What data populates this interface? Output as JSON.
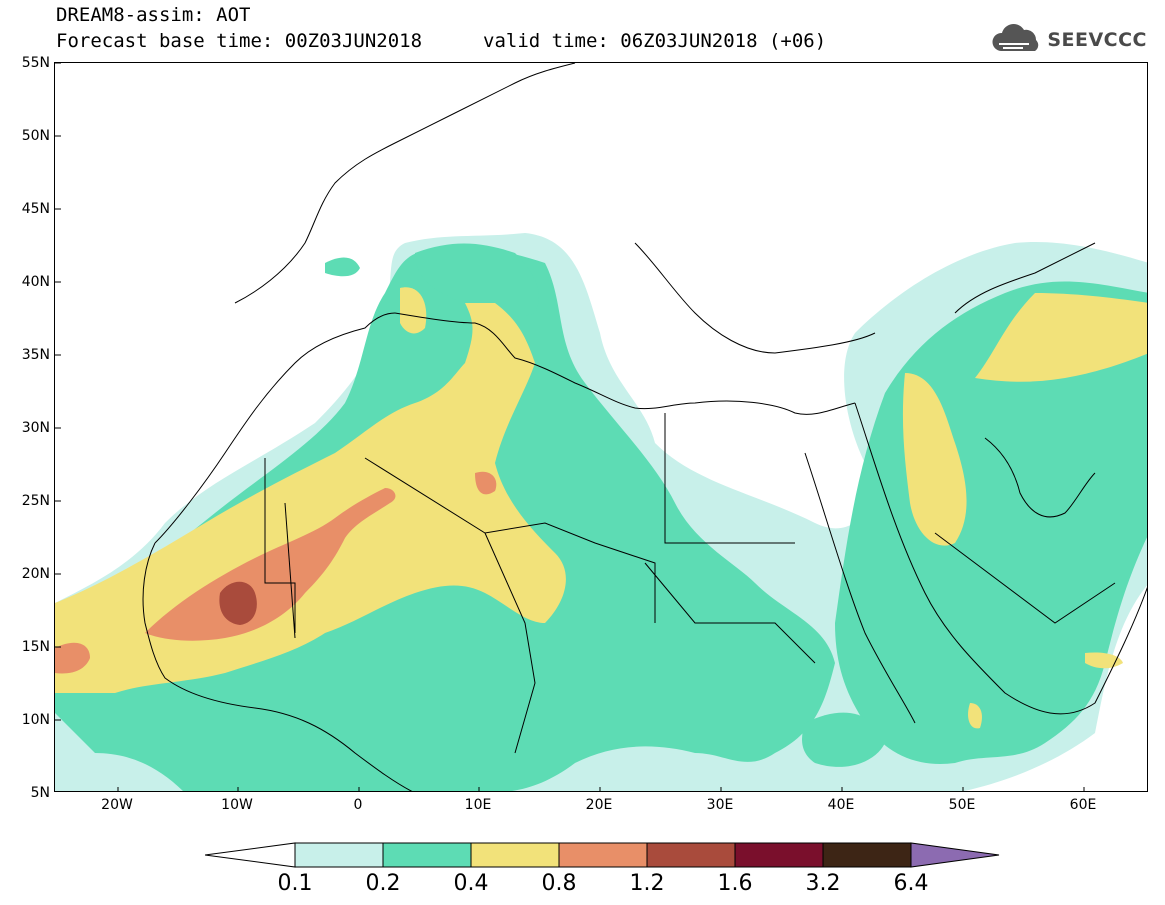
{
  "header": {
    "title_line1": "DREAM8-assim: AOT",
    "title_line2_base": "Forecast base time: 00Z03JUN2018",
    "title_line2_valid": "valid time: 06Z03JUN2018 (+06)",
    "logo_text": "SEEVCCC"
  },
  "axes": {
    "lat_labels": [
      "55N",
      "50N",
      "45N",
      "40N",
      "35N",
      "30N",
      "25N",
      "20N",
      "15N",
      "10N",
      "5N"
    ],
    "lon_labels": [
      "20W",
      "10W",
      "0",
      "10E",
      "20E",
      "30E",
      "40E",
      "50E",
      "60E"
    ]
  },
  "colorbar": {
    "labels": [
      "0.1",
      "0.2",
      "0.4",
      "0.8",
      "1.2",
      "1.6",
      "3.2",
      "6.4"
    ],
    "colors": [
      "#c8f0ea",
      "#5ddcb4",
      "#f2e27a",
      "#e88f68",
      "#a94b3c",
      "#7a0f2c",
      "#3d2515",
      "#8c6bb1"
    ]
  },
  "map": {
    "colors": {
      "c01": "#c8f0ea",
      "c02": "#5ddcb4",
      "c04": "#f2e27a",
      "c08": "#e88f68",
      "c12": "#a94b3c"
    }
  }
}
